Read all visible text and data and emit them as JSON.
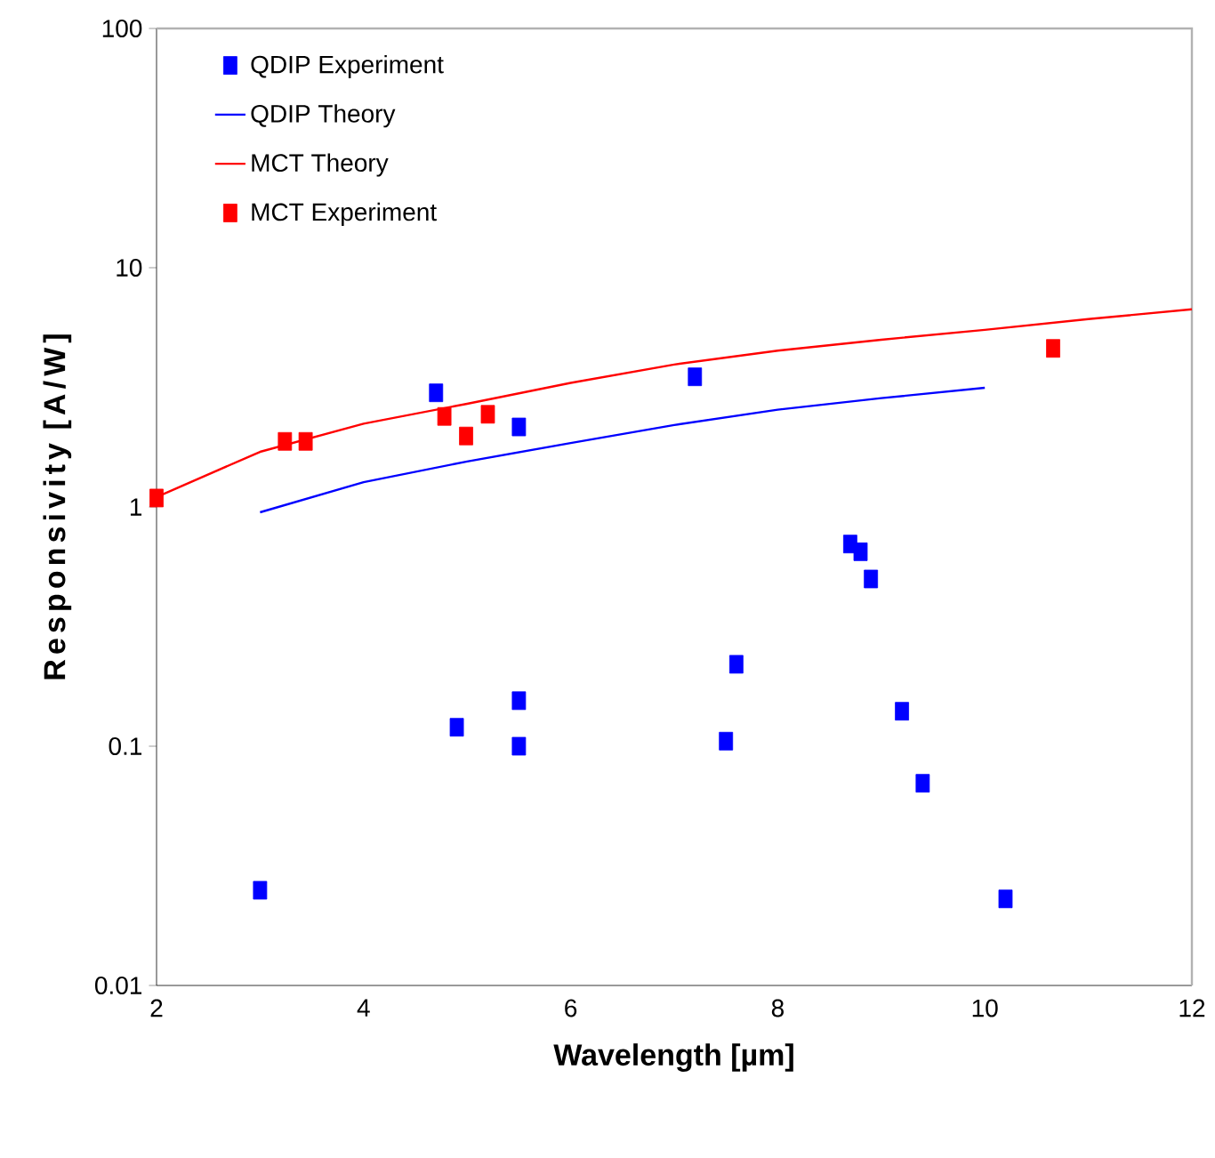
{
  "chart_data": {
    "type": "scatter",
    "xlabel": "Wavelength [µm]",
    "ylabel": "Responsivity [A/W]",
    "log": "y",
    "legend": "top left",
    "xlim": [
      2,
      12
    ],
    "xticks": [
      2,
      4,
      6,
      8,
      10,
      12
    ],
    "ylim": [
      0.01,
      100
    ],
    "yticks": [
      0.01,
      0.1,
      1,
      10,
      100
    ],
    "series": [
      {
        "name": "QDIP Experiment",
        "marker": "square",
        "color": "#0000ff",
        "x": [
          4.7,
          5.5,
          7.2,
          3.0,
          4.9,
          5.5,
          5.5,
          7.6,
          7.5,
          8.7,
          8.8,
          8.9,
          9.2,
          9.4,
          10.2
        ],
        "values": [
          3.0,
          2.16,
          3.5,
          0.025,
          0.12,
          0.155,
          0.1,
          0.22,
          0.105,
          0.7,
          0.65,
          0.5,
          0.14,
          0.07,
          0.023
        ]
      },
      {
        "name": "QDIP Theory",
        "type": "line",
        "marker": "none",
        "color": "#0000ff",
        "x": [
          3,
          4,
          5,
          6,
          7,
          8,
          9,
          10
        ],
        "values": [
          0.95,
          1.27,
          1.55,
          1.85,
          2.2,
          2.55,
          2.85,
          3.15
        ]
      },
      {
        "name": "MCT Theory",
        "type": "line",
        "marker": "none",
        "color": "#ff0000",
        "x": [
          2,
          3,
          4,
          5,
          6,
          7,
          8,
          9,
          10,
          11,
          12
        ],
        "values": [
          1.1,
          1.7,
          2.23,
          2.7,
          3.3,
          3.94,
          4.5,
          5.0,
          5.5,
          6.1,
          6.7
        ]
      },
      {
        "name": "MCT Experiment",
        "marker": "square",
        "color": "#ff0000",
        "x": [
          2.0,
          3.24,
          3.44,
          4.78,
          4.99,
          5.2,
          10.66
        ],
        "values": [
          1.09,
          1.88,
          1.88,
          2.39,
          1.98,
          2.44,
          4.6
        ]
      }
    ]
  }
}
